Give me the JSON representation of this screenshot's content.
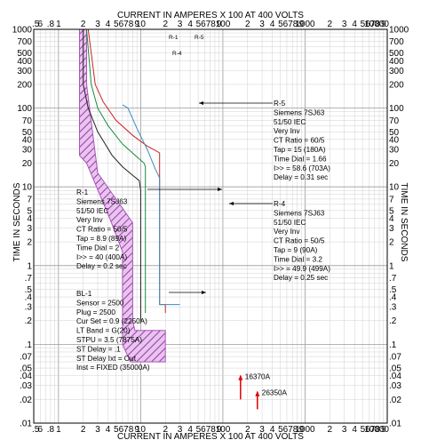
{
  "chart_data": {
    "type": "line",
    "title": "CURRENT IN AMPERES X 100 AT 400 VOLTS",
    "xlabel": "CURRENT IN AMPERES X 100 AT 400 VOLTS",
    "ylabel": "TIME IN SECONDS",
    "x_scale": "log",
    "y_scale": "log",
    "xlim": [
      0.5,
      10000
    ],
    "ylim": [
      0.01,
      1000
    ],
    "grid": true,
    "x_tick_labels": [
      ".5",
      "6",
      ".8",
      "1",
      "2",
      "3",
      "4",
      "5678",
      "9",
      "10",
      "2",
      "3",
      "4",
      "5678",
      "9",
      "100",
      "2",
      "3",
      "4",
      "5678",
      "9",
      "1000",
      "2",
      "3",
      "4",
      "5678",
      "9",
      "10000"
    ],
    "y_tick_labels": [
      "1000",
      "700",
      "500",
      "400",
      "300",
      "200",
      "100",
      "70",
      "50",
      "40",
      "30",
      "20",
      "10",
      "7",
      "5",
      "4",
      "3",
      "2",
      "1",
      ".7",
      ".5",
      ".4",
      ".3",
      ".2",
      ".1",
      ".07",
      ".05",
      ".04",
      ".03",
      ".02",
      ".01"
    ],
    "series": [
      {
        "name": "R-1",
        "color": "#222222",
        "x": [
          2,
          2,
          2.3,
          3,
          4.5,
          6,
          8,
          9.6,
          10,
          10
        ],
        "y": [
          1000,
          200,
          100,
          50,
          25,
          18,
          14,
          12,
          9,
          0.2
        ]
      },
      {
        "name": "R-4",
        "color": "#1a8c3a",
        "x": [
          2.2,
          2.5,
          3,
          4,
          6,
          9,
          11,
          11.4,
          11.4
        ],
        "y": [
          1000,
          200,
          100,
          60,
          35,
          24,
          20,
          18,
          0.25
        ]
      },
      {
        "name": "R-5",
        "color": "#cc2222",
        "x": [
          2.3,
          2.8,
          3.5,
          5,
          8,
          12,
          15,
          17,
          17,
          20,
          20
        ],
        "y": [
          1000,
          200,
          120,
          70,
          45,
          33,
          29,
          27,
          0.32,
          0.32,
          0.25
        ]
      },
      {
        "name": "R-5 (Siemens 7SJ63)",
        "color": "#3a8cc2",
        "x": [
          6,
          7,
          9,
          12,
          15,
          17,
          17,
          30,
          30
        ],
        "y": [
          110,
          100,
          55,
          30,
          17,
          13,
          0.32,
          0.32,
          0.32
        ]
      }
    ],
    "band": {
      "name": "BL-1",
      "color": "#aa55bb",
      "x_left": [
        1.8,
        1.8,
        2.2,
        4.2,
        6,
        6,
        7.5,
        7.5
      ],
      "y_left": [
        1000,
        25,
        20,
        4,
        1.5,
        0.1,
        0.06,
        0.06
      ],
      "x_right": [
        2.2,
        2.2,
        3,
        8,
        8,
        8,
        8.5,
        20,
        20
      ],
      "y_right": [
        1000,
        200,
        15,
        3.5,
        1.2,
        0.2,
        0.15,
        0.15,
        0.06
      ]
    },
    "markers": [
      {
        "label": "16370A",
        "x": 164,
        "y_top": 0.04,
        "y_bottom": 0.02
      },
      {
        "label": "26350A",
        "x": 263,
        "y_top": 0.025,
        "y_bottom": 0.015
      }
    ],
    "annotations": [
      {
        "id": "r5",
        "lines": [
          "R-5",
          "Siemens 7SJ63",
          "51/50 IEC",
          "Very Inv",
          "CT Ratio = 60/5",
          "Tap = 15 (180A)",
          "Time Dial = 1.66",
          "I>> = 58.6 (703A)",
          "Delay = 0.31 sec"
        ]
      },
      {
        "id": "r1",
        "lines": [
          "R-1",
          "Siemens 7SJ63",
          "51/50 IEC",
          "Very Inv",
          "CT Ratio = 50/5",
          "Tap = 8.9 (89A)",
          "Time Dial = 2",
          "I>> = 40 (400A)",
          "Delay = 0.2 sec"
        ]
      },
      {
        "id": "r4",
        "lines": [
          "R-4",
          "Siemens 7SJ63",
          "51/50 IEC",
          "Very Inv",
          "CT Ratio = 50/5",
          "Tap = 9 (90A)",
          "Time Dial = 3.2",
          "I>> = 49.9 (499A)",
          "Delay = 0.25 sec"
        ]
      },
      {
        "id": "bl1",
        "lines": [
          "BL-1",
          "Sensor = 2500",
          "Plug = 2500",
          "Cur Set = 0.9 (2250A)",
          "LT Band = G(20)",
          "STPU = 3.5 (7875A)",
          "ST Delay = .1",
          "ST Delay Ixt = Out",
          "Inst = FIXED (35000A)"
        ]
      }
    ],
    "curve_tags": [
      "R-1",
      "R-5",
      "R-4"
    ]
  }
}
